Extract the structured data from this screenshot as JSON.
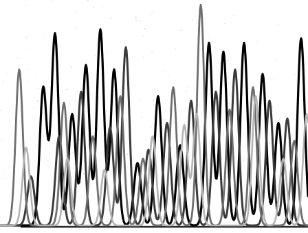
{
  "chart_data": {
    "type": "line",
    "title": "",
    "xlabel": "",
    "ylabel": "",
    "xlim": [
      0,
      448
    ],
    "ylim": [
      0,
      1
    ],
    "grid": false,
    "legend": "none",
    "series": [
      {
        "color": "#000000",
        "peaks": [
          {
            "x": 63,
            "h": 0.62
          },
          {
            "x": 80,
            "h": 0.86
          },
          {
            "x": 105,
            "h": 0.5
          },
          {
            "x": 125,
            "h": 0.72
          },
          {
            "x": 146,
            "h": 0.88
          },
          {
            "x": 166,
            "h": 0.7
          },
          {
            "x": 200,
            "h": 0.28
          },
          {
            "x": 230,
            "h": 0.58
          },
          {
            "x": 262,
            "h": 0.36
          },
          {
            "x": 304,
            "h": 0.82
          },
          {
            "x": 325,
            "h": 0.78
          },
          {
            "x": 355,
            "h": 0.82
          },
          {
            "x": 382,
            "h": 0.68
          },
          {
            "x": 405,
            "h": 0.46
          },
          {
            "x": 438,
            "h": 0.84
          }
        ]
      },
      {
        "color": "#3a3a3a",
        "peaks": [
          {
            "x": 45,
            "h": 0.22
          },
          {
            "x": 86,
            "h": 0.4
          },
          {
            "x": 118,
            "h": 0.6
          },
          {
            "x": 160,
            "h": 0.44
          },
          {
            "x": 183,
            "h": 0.8
          },
          {
            "x": 216,
            "h": 0.34
          },
          {
            "x": 243,
            "h": 0.46
          },
          {
            "x": 278,
            "h": 0.56
          },
          {
            "x": 314,
            "h": 0.6
          },
          {
            "x": 342,
            "h": 0.7
          },
          {
            "x": 392,
            "h": 0.56
          },
          {
            "x": 418,
            "h": 0.48
          }
        ]
      },
      {
        "color": "#6e6e6e",
        "peaks": [
          {
            "x": 28,
            "h": 0.7
          },
          {
            "x": 93,
            "h": 0.55
          },
          {
            "x": 135,
            "h": 0.4
          },
          {
            "x": 175,
            "h": 0.58
          },
          {
            "x": 208,
            "h": 0.3
          },
          {
            "x": 252,
            "h": 0.62
          },
          {
            "x": 292,
            "h": 0.99
          },
          {
            "x": 334,
            "h": 0.52
          },
          {
            "x": 368,
            "h": 0.62
          },
          {
            "x": 428,
            "h": 0.38
          }
        ]
      },
      {
        "color": "#b4b4b4",
        "peaks": [
          {
            "x": 38,
            "h": 0.35
          },
          {
            "x": 98,
            "h": 0.3
          },
          {
            "x": 152,
            "h": 0.25
          },
          {
            "x": 222,
            "h": 0.4
          },
          {
            "x": 268,
            "h": 0.45
          },
          {
            "x": 286,
            "h": 0.5
          },
          {
            "x": 372,
            "h": 0.58
          },
          {
            "x": 412,
            "h": 0.3
          },
          {
            "x": 446,
            "h": 0.5
          }
        ]
      }
    ]
  }
}
